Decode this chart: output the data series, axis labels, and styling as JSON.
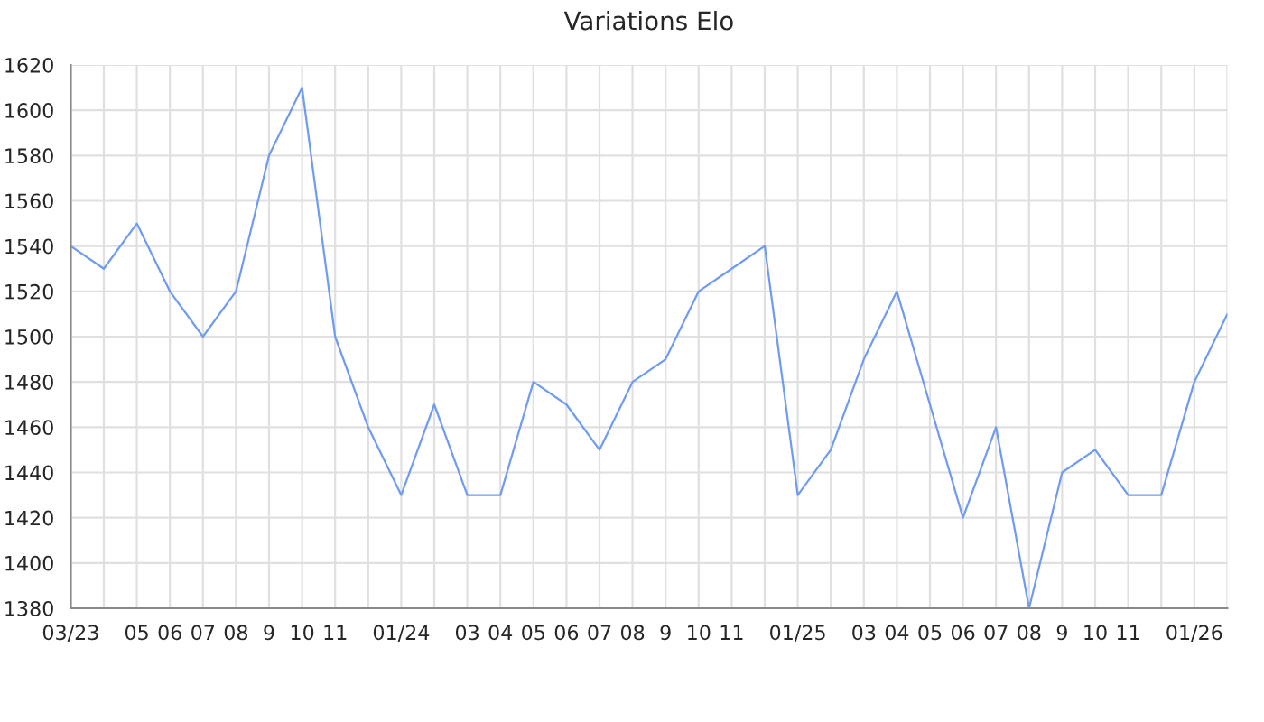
{
  "chart_data": {
    "type": "line",
    "title": "Variations Elo",
    "categories": [
      "03/23",
      null,
      "05",
      "06",
      "07",
      "08",
      "9",
      "10",
      "11",
      null,
      "01/24",
      null,
      "03",
      "04",
      "05",
      "06",
      "07",
      "08",
      "9",
      "10",
      "11",
      null,
      "01/25",
      null,
      "03",
      "04",
      "05",
      "06",
      "07",
      "08",
      "9",
      "10",
      "11",
      null,
      "01/26",
      null
    ],
    "series": [
      {
        "color": "#6f9cf0",
        "values": [
          1540,
          1530,
          1550,
          1520,
          1500,
          1520,
          1580,
          1610,
          1500,
          1460,
          1430,
          1470,
          1430,
          1430,
          1480,
          1470,
          1450,
          1480,
          1490,
          1520,
          1530,
          1540,
          1430,
          1450,
          1490,
          1520,
          1470,
          1420,
          1460,
          1380,
          1440,
          1450,
          1430,
          1430,
          1480,
          1510
        ]
      }
    ],
    "ylim": [
      1380,
      1620
    ],
    "yticks": [
      1380,
      1400,
      1420,
      1440,
      1460,
      1480,
      1500,
      1520,
      1540,
      1560,
      1580,
      1600,
      1620
    ],
    "grid": true
  }
}
